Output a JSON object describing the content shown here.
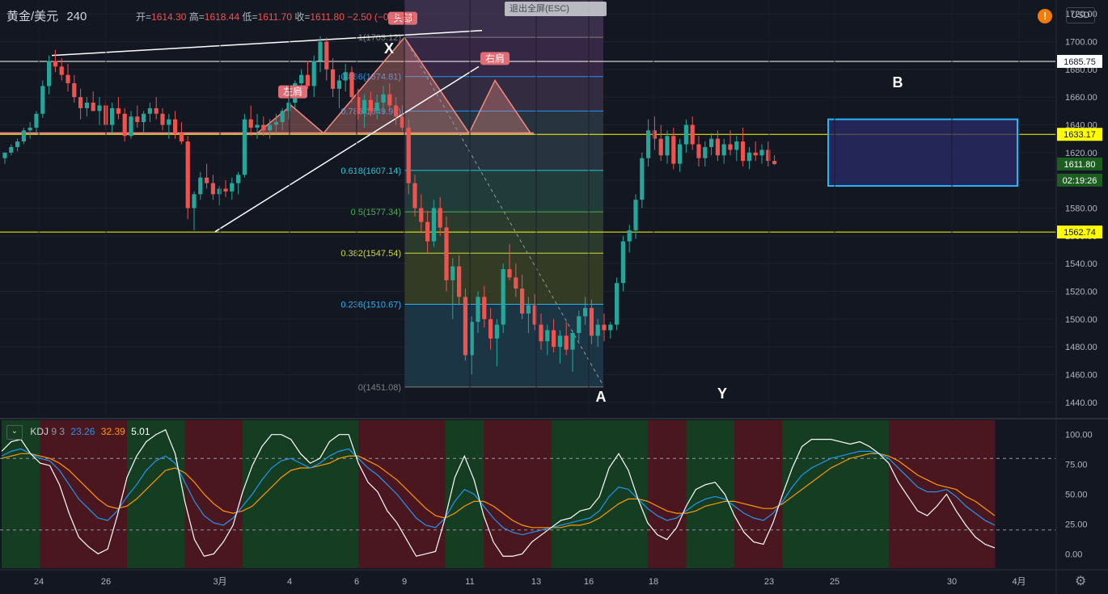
{
  "header": {
    "symbol": "黄金/美元",
    "interval": "240",
    "open_label": "开=",
    "open": "1614.30",
    "high_label": "高=",
    "high": "1618.44",
    "low_label": "低=",
    "low": "1611.70",
    "close_label": "收=",
    "close": "1611.80",
    "change": "−2.50 (−0.15%)"
  },
  "toolbar": {
    "exit_fullscreen_label": "退出全屏(ESC)",
    "currency_label": "USD",
    "alert_mark": "!"
  },
  "colors": {
    "background": "#131722",
    "up_candle": "#26a69a",
    "down_candle": "#ef5350",
    "k_line": "#2196f3",
    "d_line": "#ff9800",
    "j_line": "#ffffff",
    "horizontal_yellow": "#ffff00",
    "pattern_box": "#2962ff"
  },
  "indicator": {
    "name": "KDJ",
    "params": "9 3",
    "k_value": "23.26",
    "d_value": "32.39",
    "j_value": "5.01"
  },
  "chart_data": {
    "type": "candlestick",
    "y_range": [
      1430,
      1730
    ],
    "y_ticks": [
      "1720.00",
      "1700.00",
      "1680.00",
      "1660.00",
      "1640.00",
      "1620.00",
      "1600.00",
      "1580.00",
      "1560.00",
      "1540.00",
      "1520.00",
      "1500.00",
      "1480.00",
      "1460.00",
      "1440.00"
    ],
    "x_ticks": [
      "24",
      "26",
      "3月",
      "4",
      "6",
      "9",
      "11",
      "13",
      "16",
      "18",
      "23",
      "25",
      "30",
      "4月"
    ],
    "price_tags": [
      {
        "label": "1685.75",
        "style": "white"
      },
      {
        "label": "1633.17",
        "style": "yellow"
      },
      {
        "label": "1611.80",
        "style": "current"
      },
      {
        "label": "02:19:26",
        "style": "countdown"
      },
      {
        "label": "1562.74",
        "style": "yellow"
      }
    ],
    "horizontal_lines": [
      1685.75,
      1633.17,
      1562.74
    ],
    "fib_levels": [
      {
        "ratio": "1(1703.12)",
        "value": 1703.12,
        "color": "#808080"
      },
      {
        "ratio": "0.886(1674.81)",
        "value": 1674.81,
        "color": "#2196f3"
      },
      {
        "ratio": "0.786(1649.96)",
        "value": 1649.96,
        "color": "#2196f3"
      },
      {
        "ratio": "0.618(1607.14)",
        "value": 1607.14,
        "color": "#26c6da"
      },
      {
        "ratio": "0.5(1577.34)",
        "value": 1577.34,
        "color": "#4caf50"
      },
      {
        "ratio": "0.382(1547.54)",
        "value": 1547.54,
        "color": "#cddc39"
      },
      {
        "ratio": "0.236(1510.67)",
        "value": 1510.67,
        "color": "#29b6f6"
      },
      {
        "ratio": "0(1451.08)",
        "value": 1451.08,
        "color": "#808080"
      }
    ],
    "pattern_labels": [
      {
        "text": "左肩"
      },
      {
        "text": "头部"
      },
      {
        "text": "右肩"
      }
    ],
    "point_labels": [
      "X",
      "A",
      "Y",
      "B"
    ],
    "candles": [
      [
        1616,
        1620,
        1612,
        1620
      ],
      [
        1620,
        1626,
        1618,
        1624
      ],
      [
        1624,
        1630,
        1621,
        1628
      ],
      [
        1628,
        1638,
        1626,
        1636
      ],
      [
        1636,
        1642,
        1630,
        1638
      ],
      [
        1638,
        1650,
        1634,
        1648
      ],
      [
        1648,
        1672,
        1645,
        1668
      ],
      [
        1668,
        1690,
        1662,
        1686
      ],
      [
        1686,
        1694,
        1678,
        1682
      ],
      [
        1682,
        1688,
        1672,
        1676
      ],
      [
        1676,
        1684,
        1664,
        1670
      ],
      [
        1670,
        1676,
        1656,
        1660
      ],
      [
        1660,
        1666,
        1644,
        1652
      ],
      [
        1652,
        1660,
        1646,
        1656
      ],
      [
        1656,
        1664,
        1650,
        1650
      ],
      [
        1650,
        1660,
        1640,
        1654
      ],
      [
        1654,
        1658,
        1636,
        1640
      ],
      [
        1640,
        1656,
        1634,
        1652
      ],
      [
        1652,
        1660,
        1644,
        1648
      ],
      [
        1648,
        1652,
        1628,
        1632
      ],
      [
        1632,
        1650,
        1630,
        1646
      ],
      [
        1646,
        1654,
        1638,
        1642
      ],
      [
        1642,
        1650,
        1634,
        1648
      ],
      [
        1648,
        1656,
        1642,
        1652
      ],
      [
        1652,
        1660,
        1644,
        1648
      ],
      [
        1648,
        1652,
        1636,
        1640
      ],
      [
        1640,
        1648,
        1630,
        1644
      ],
      [
        1644,
        1650,
        1630,
        1634
      ],
      [
        1634,
        1642,
        1626,
        1628
      ],
      [
        1628,
        1632,
        1572,
        1580
      ],
      [
        1580,
        1592,
        1564,
        1590
      ],
      [
        1590,
        1606,
        1586,
        1602
      ],
      [
        1602,
        1612,
        1594,
        1598
      ],
      [
        1598,
        1604,
        1586,
        1590
      ],
      [
        1590,
        1596,
        1582,
        1594
      ],
      [
        1594,
        1600,
        1588,
        1592
      ],
      [
        1592,
        1602,
        1586,
        1598
      ],
      [
        1598,
        1606,
        1590,
        1604
      ],
      [
        1604,
        1648,
        1602,
        1644
      ],
      [
        1644,
        1654,
        1632,
        1638
      ],
      [
        1638,
        1648,
        1630,
        1640
      ],
      [
        1640,
        1646,
        1632,
        1636
      ],
      [
        1636,
        1644,
        1630,
        1640
      ],
      [
        1640,
        1648,
        1634,
        1642
      ],
      [
        1642,
        1652,
        1636,
        1650
      ],
      [
        1650,
        1660,
        1644,
        1656
      ],
      [
        1656,
        1672,
        1652,
        1670
      ],
      [
        1670,
        1680,
        1662,
        1676
      ],
      [
        1676,
        1686,
        1666,
        1668
      ],
      [
        1668,
        1690,
        1660,
        1686
      ],
      [
        1686,
        1704,
        1678,
        1700
      ],
      [
        1700,
        1703,
        1672,
        1680
      ],
      [
        1680,
        1688,
        1660,
        1666
      ],
      [
        1666,
        1676,
        1652,
        1672
      ],
      [
        1672,
        1684,
        1664,
        1678
      ],
      [
        1678,
        1682,
        1656,
        1660
      ],
      [
        1660,
        1666,
        1644,
        1648
      ],
      [
        1648,
        1662,
        1638,
        1658
      ],
      [
        1658,
        1664,
        1646,
        1650
      ],
      [
        1650,
        1662,
        1644,
        1656
      ],
      [
        1656,
        1668,
        1648,
        1662
      ],
      [
        1662,
        1670,
        1650,
        1654
      ],
      [
        1654,
        1660,
        1640,
        1646
      ],
      [
        1646,
        1654,
        1636,
        1638
      ],
      [
        1638,
        1644,
        1590,
        1598
      ],
      [
        1598,
        1604,
        1574,
        1580
      ],
      [
        1580,
        1590,
        1562,
        1570
      ],
      [
        1570,
        1578,
        1548,
        1556
      ],
      [
        1556,
        1586,
        1552,
        1580
      ],
      [
        1580,
        1588,
        1560,
        1566
      ],
      [
        1566,
        1574,
        1520,
        1528
      ],
      [
        1528,
        1544,
        1500,
        1538
      ],
      [
        1538,
        1546,
        1510,
        1516
      ],
      [
        1516,
        1522,
        1470,
        1474
      ],
      [
        1474,
        1502,
        1460,
        1498
      ],
      [
        1498,
        1520,
        1490,
        1516
      ],
      [
        1516,
        1524,
        1494,
        1500
      ],
      [
        1500,
        1508,
        1478,
        1486
      ],
      [
        1486,
        1500,
        1466,
        1496
      ],
      [
        1496,
        1540,
        1490,
        1536
      ],
      [
        1536,
        1554,
        1528,
        1530
      ],
      [
        1530,
        1540,
        1516,
        1522
      ],
      [
        1522,
        1532,
        1500,
        1504
      ],
      [
        1504,
        1516,
        1490,
        1510
      ],
      [
        1510,
        1518,
        1492,
        1496
      ],
      [
        1496,
        1504,
        1478,
        1484
      ],
      [
        1484,
        1496,
        1474,
        1492
      ],
      [
        1492,
        1500,
        1476,
        1480
      ],
      [
        1480,
        1492,
        1468,
        1488
      ],
      [
        1488,
        1498,
        1474,
        1478
      ],
      [
        1478,
        1492,
        1462,
        1490
      ],
      [
        1490,
        1506,
        1484,
        1502
      ],
      [
        1502,
        1516,
        1496,
        1508
      ],
      [
        1508,
        1514,
        1482,
        1488
      ],
      [
        1488,
        1500,
        1480,
        1496
      ],
      [
        1496,
        1504,
        1484,
        1492
      ],
      [
        1492,
        1498,
        1486,
        1496
      ],
      [
        1496,
        1530,
        1492,
        1526
      ],
      [
        1526,
        1560,
        1520,
        1556
      ],
      [
        1556,
        1568,
        1548,
        1564
      ],
      [
        1564,
        1590,
        1558,
        1586
      ],
      [
        1586,
        1620,
        1580,
        1616
      ],
      [
        1616,
        1644,
        1610,
        1636
      ],
      [
        1636,
        1646,
        1622,
        1630
      ],
      [
        1630,
        1640,
        1614,
        1618
      ],
      [
        1618,
        1636,
        1612,
        1632
      ],
      [
        1632,
        1638,
        1608,
        1612
      ],
      [
        1612,
        1630,
        1606,
        1626
      ],
      [
        1626,
        1644,
        1620,
        1640
      ],
      [
        1640,
        1646,
        1622,
        1626
      ],
      [
        1626,
        1632,
        1610,
        1616
      ],
      [
        1616,
        1628,
        1610,
        1624
      ],
      [
        1624,
        1634,
        1618,
        1630
      ],
      [
        1630,
        1636,
        1614,
        1618
      ],
      [
        1618,
        1630,
        1612,
        1626
      ],
      [
        1626,
        1636,
        1618,
        1622
      ],
      [
        1622,
        1632,
        1614,
        1628
      ],
      [
        1628,
        1638,
        1610,
        1614
      ],
      [
        1614,
        1624,
        1608,
        1620
      ],
      [
        1620,
        1628,
        1614,
        1618
      ],
      [
        1618,
        1626,
        1612,
        1622
      ],
      [
        1622,
        1628,
        1610,
        1614
      ],
      [
        1614,
        1618,
        1611,
        1611.8
      ]
    ],
    "kdj": {
      "y_range": [
        -12,
        112
      ],
      "y_ticks": [
        "100.00",
        "75.00",
        "50.00",
        "25.00",
        "0.00"
      ],
      "k": [
        82,
        86,
        88,
        84,
        80,
        78,
        70,
        58,
        46,
        38,
        30,
        28,
        36,
        48,
        58,
        70,
        78,
        82,
        76,
        60,
        44,
        32,
        26,
        24,
        30,
        40,
        50,
        62,
        72,
        78,
        80,
        76,
        72,
        76,
        82,
        86,
        88,
        80,
        72,
        66,
        58,
        50,
        40,
        30,
        24,
        22,
        30,
        44,
        54,
        50,
        40,
        30,
        22,
        18,
        16,
        18,
        20,
        22,
        24,
        26,
        28,
        30,
        36,
        48,
        56,
        54,
        46,
        38,
        32,
        28,
        30,
        36,
        42,
        46,
        48,
        46,
        40,
        34,
        30,
        28,
        34,
        44,
        56,
        66,
        72,
        76,
        80,
        82,
        84,
        86,
        86,
        84,
        80,
        72,
        64,
        56,
        52,
        52,
        54,
        48,
        40,
        34,
        28,
        24
      ],
      "d": [
        80,
        82,
        84,
        84,
        82,
        80,
        76,
        70,
        62,
        54,
        46,
        40,
        38,
        40,
        46,
        54,
        62,
        70,
        72,
        68,
        60,
        50,
        42,
        36,
        34,
        36,
        40,
        48,
        56,
        64,
        70,
        72,
        72,
        74,
        76,
        80,
        82,
        82,
        78,
        74,
        68,
        62,
        54,
        46,
        38,
        32,
        30,
        34,
        40,
        44,
        44,
        40,
        34,
        28,
        24,
        22,
        22,
        22,
        22,
        24,
        24,
        26,
        30,
        36,
        42,
        46,
        46,
        44,
        40,
        36,
        34,
        34,
        36,
        40,
        42,
        44,
        44,
        42,
        40,
        38,
        38,
        42,
        48,
        54,
        60,
        66,
        72,
        76,
        80,
        82,
        84,
        84,
        82,
        78,
        72,
        66,
        62,
        58,
        56,
        54,
        48,
        44,
        38,
        32
      ],
      "j": [
        86,
        94,
        96,
        84,
        76,
        74,
        58,
        34,
        14,
        6,
        0,
        4,
        32,
        64,
        82,
        94,
        100,
        104,
        84,
        44,
        12,
        -2,
        0,
        10,
        24,
        52,
        74,
        90,
        100,
        100,
        96,
        84,
        76,
        80,
        94,
        100,
        100,
        76,
        60,
        52,
        36,
        26,
        12,
        -2,
        0,
        2,
        30,
        64,
        82,
        62,
        32,
        10,
        -2,
        -2,
        0,
        10,
        16,
        22,
        28,
        30,
        36,
        38,
        48,
        72,
        84,
        70,
        46,
        26,
        16,
        12,
        22,
        40,
        54,
        58,
        60,
        50,
        32,
        18,
        10,
        8,
        26,
        50,
        72,
        90,
        96,
        96,
        96,
        94,
        92,
        94,
        90,
        84,
        76,
        60,
        48,
        36,
        32,
        40,
        50,
        36,
        24,
        14,
        8,
        5
      ]
    }
  }
}
